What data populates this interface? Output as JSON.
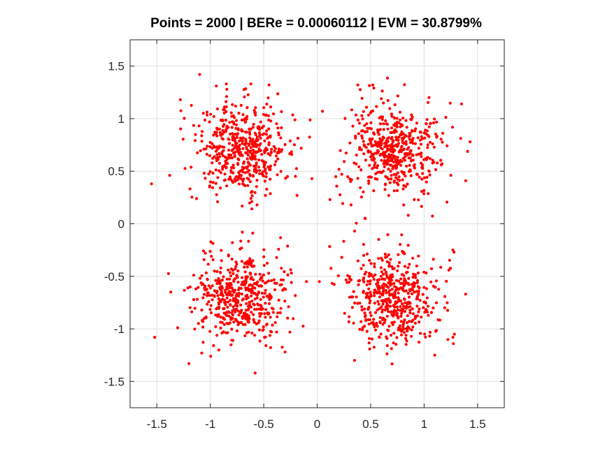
{
  "chart_data": {
    "type": "scatter",
    "title": "Points = 2000 | BERe = 0.00060112 | EVM = 30.8799%",
    "xlabel": "",
    "ylabel": "",
    "xlim": [
      -1.75,
      1.75
    ],
    "ylim": [
      -1.75,
      1.75
    ],
    "xticks": [
      -1.5,
      -1,
      -0.5,
      0,
      0.5,
      1,
      1.5
    ],
    "yticks": [
      -1.5,
      -1,
      -0.5,
      0,
      0.5,
      1,
      1.5
    ],
    "xtick_labels": [
      "-1.5",
      "-1",
      "-0.5",
      "0",
      "0.5",
      "1",
      "1.5"
    ],
    "ytick_labels": [
      "-1.5",
      "-1",
      "-0.5",
      "0",
      "0.5",
      "1",
      "1.5"
    ],
    "grid": true,
    "marker_color": "#ff0000",
    "series": [
      {
        "clusters": [
          {
            "center": [
              -0.707,
              0.707
            ],
            "spread": 0.218
          },
          {
            "center": [
              0.707,
              0.707
            ],
            "spread": 0.218
          },
          {
            "center": [
              -0.707,
              -0.707
            ],
            "spread": 0.218
          },
          {
            "center": [
              0.707,
              -0.707
            ],
            "spread": 0.218
          }
        ],
        "points_per_cluster": 500,
        "points": [
          [
            -1.1,
            1.42
          ],
          [
            -0.85,
            1.33
          ],
          [
            -0.62,
            1.33
          ],
          [
            0.38,
            1.32
          ],
          [
            0.52,
            1.32
          ],
          [
            -1.28,
            1.18
          ],
          [
            1.35,
            1.14
          ],
          [
            -0.45,
            1.32
          ],
          [
            -1.55,
            0.38
          ],
          [
            -1.38,
            0.46
          ],
          [
            1.43,
            0.78
          ],
          [
            -0.05,
            0.43
          ],
          [
            0.12,
            0.23
          ],
          [
            0.05,
            1.07
          ],
          [
            -1.52,
            -1.08
          ],
          [
            -1.37,
            -0.65
          ],
          [
            -1.2,
            -1.33
          ],
          [
            -0.3,
            -1.22
          ],
          [
            0.35,
            -1.3
          ],
          [
            1.27,
            -1.08
          ],
          [
            1.27,
            -0.25
          ],
          [
            1.28,
            -0.27
          ],
          [
            -0.58,
            -1.42
          ],
          [
            -0.7,
            -0.08
          ],
          [
            0.45,
            0.05
          ],
          [
            0.35,
            -0.07
          ],
          [
            -0.1,
            -0.55
          ],
          [
            0.02,
            -0.55
          ],
          [
            -1.08,
            -1.23
          ],
          [
            1.1,
            -1.25
          ]
        ]
      }
    ]
  }
}
